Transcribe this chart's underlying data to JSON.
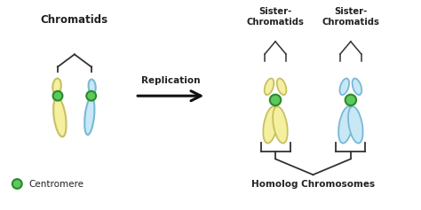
{
  "bg_color": "#ffffff",
  "yellow_fill": "#f5f0a0",
  "yellow_stroke": "#c8c060",
  "blue_fill": "#c8e8f5",
  "blue_stroke": "#7ab8d8",
  "green_fill": "#5dc85d",
  "green_stroke": "#2a8a2a",
  "text_color": "#222222",
  "arrow_color": "#111111",
  "title_left": "Chromatids",
  "title_right1": "Sister-\nChromatids",
  "title_right2": "Sister-\nChromatids",
  "label_replication": "Replication",
  "label_centromere": "Centromere",
  "label_homolog": "Homolog Chromosomes"
}
